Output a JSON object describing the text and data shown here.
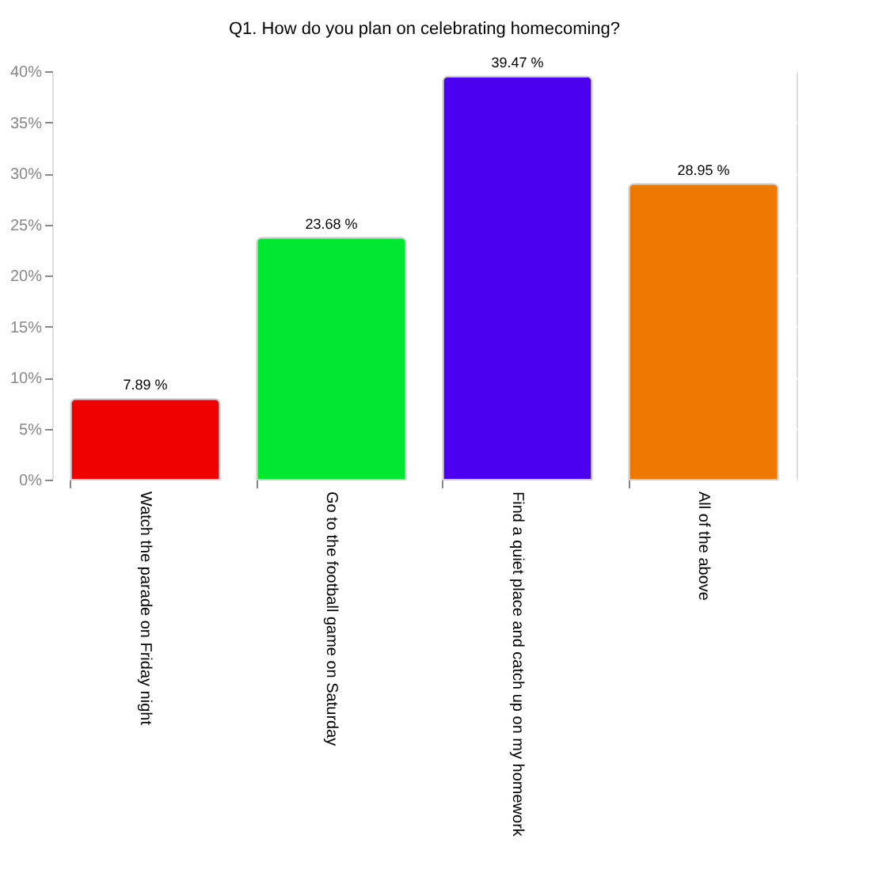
{
  "chart_data": {
    "type": "bar",
    "title": "Q1. How do you plan on celebrating homecoming?",
    "categories": [
      "Watch the parade on Friday night",
      "Go to the football game on Saturday",
      "Find a quiet place and catch up on my homework",
      "All of the above"
    ],
    "values": [
      7.89,
      23.68,
      39.47,
      28.95
    ],
    "colors": [
      "#ee0000",
      "#00e830",
      "#4c00f0",
      "#ee7800"
    ],
    "value_labels": [
      "7.89 %",
      "23.68 %",
      "39.47 %",
      "28.95 %"
    ],
    "ylim": [
      0,
      40
    ],
    "yticks": [
      {
        "value": 0,
        "label": "0%"
      },
      {
        "value": 5,
        "label": "5%"
      },
      {
        "value": 10,
        "label": "10%"
      },
      {
        "value": 15,
        "label": "15%"
      },
      {
        "value": 20,
        "label": "20%"
      },
      {
        "value": 25,
        "label": "25%"
      },
      {
        "value": 30,
        "label": "30%"
      },
      {
        "value": 35,
        "label": "35%"
      },
      {
        "value": 40,
        "label": "40%"
      }
    ],
    "grid": "y"
  }
}
